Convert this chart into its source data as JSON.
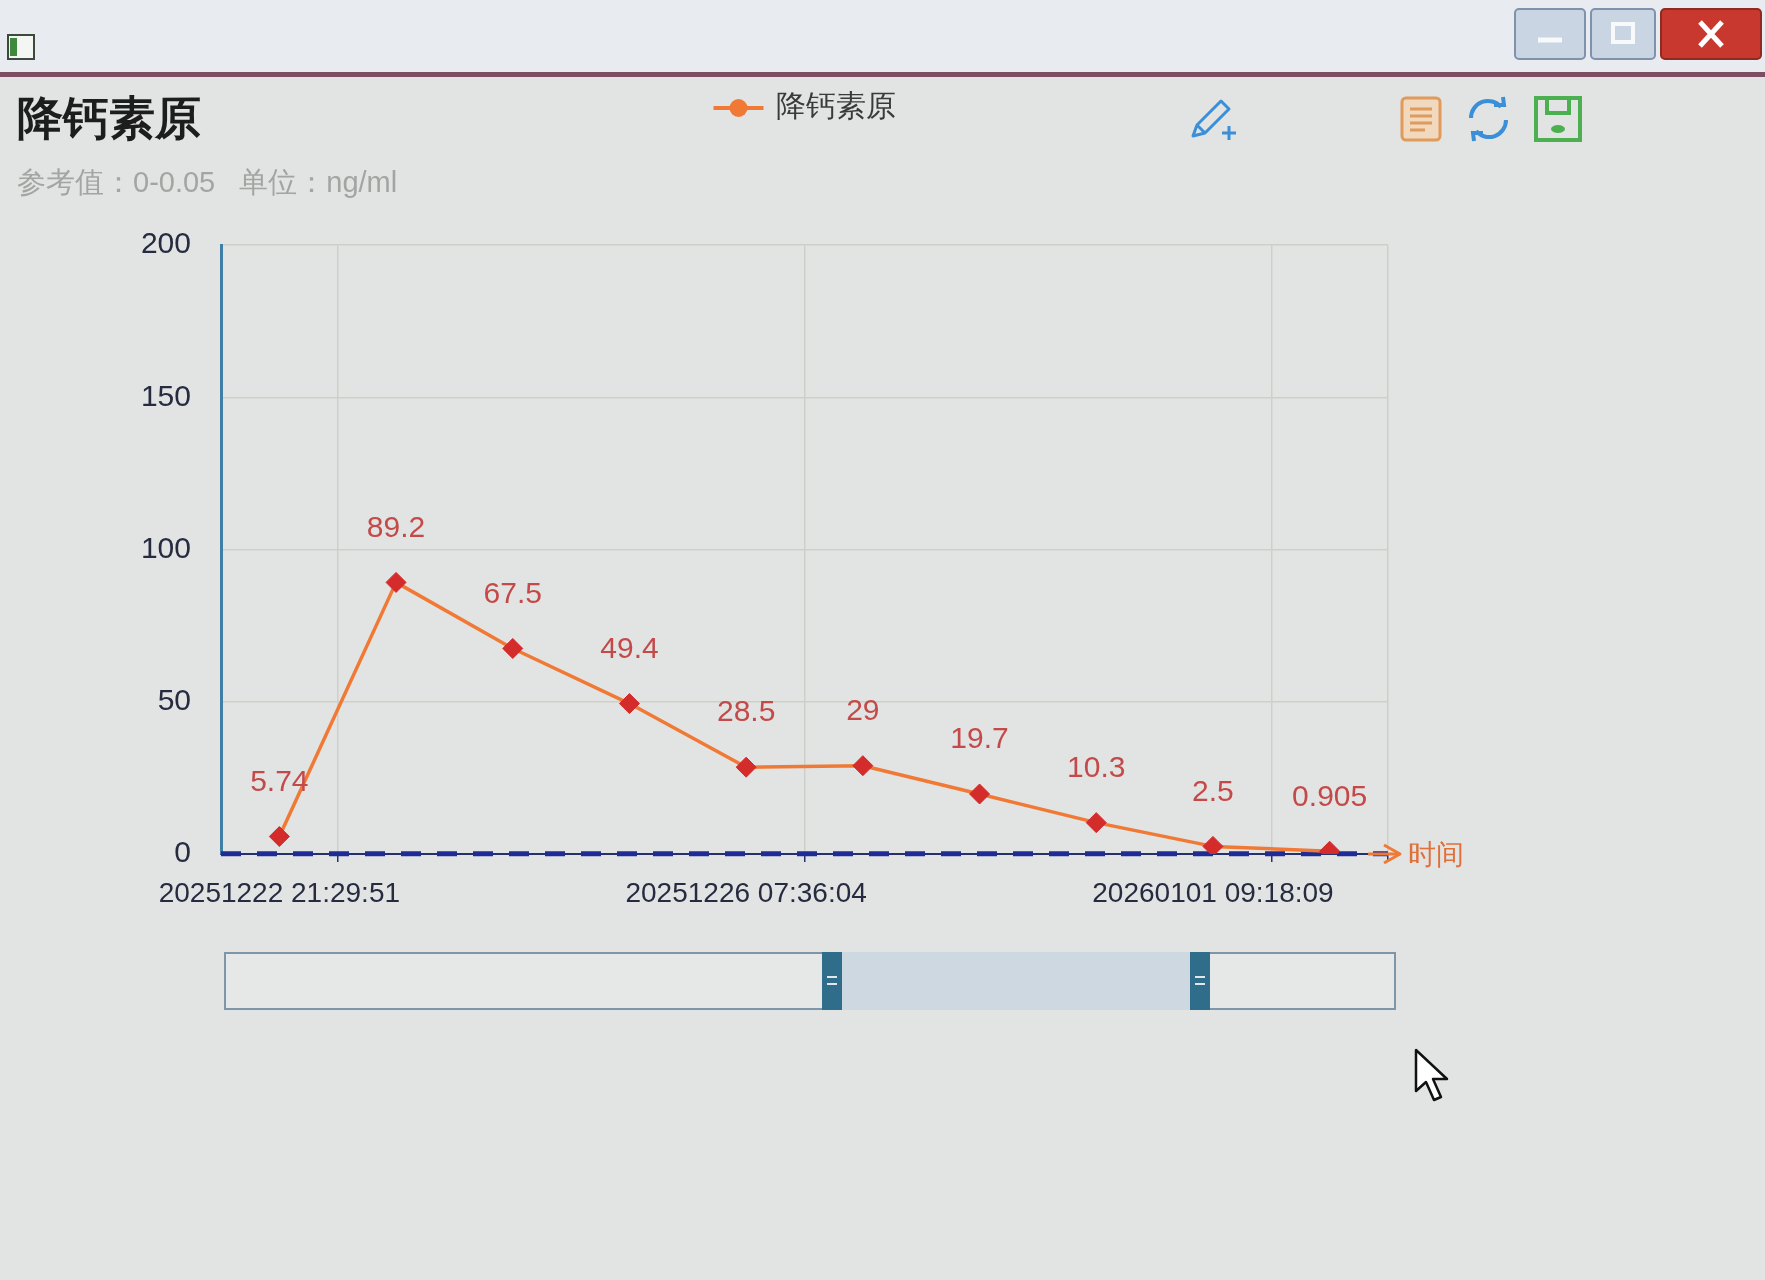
{
  "chart_data": {
    "type": "line",
    "title": "降钙素原",
    "subtitle": "参考值：0-0.05 单位：ng/ml",
    "xlabel": "时间",
    "categories": [
      "20251222 21:29:51",
      null,
      null,
      null,
      "20251226 07:36:04",
      null,
      null,
      null,
      "20260101 09:18:09",
      null
    ],
    "series": [
      {
        "name": "降钙素原",
        "color": "#f07a35",
        "colors": [
          "#d42b2b",
          "#d42b2b",
          "#d42b2b",
          "#d42b2b",
          "#d42b2b",
          "#d42b2b",
          "#d42b2b",
          "#d42b2b",
          "#d42b2b",
          "#d42b2b"
        ],
        "values": [
          5.74,
          89.2,
          67.5,
          49.4,
          28.5,
          29,
          19.7,
          10.3,
          2.5,
          0.905
        ]
      }
    ],
    "ylim": [
      0,
      200
    ],
    "yticks": [
      0,
      50,
      100,
      150,
      200
    ],
    "grid": true,
    "legend": "top",
    "marker": "diamond",
    "line_style": "solid",
    "data_labels": true,
    "ref_lines": [
      {
        "axis": "y",
        "value": 0.05,
        "color": "#1f2c96",
        "line_style": "dashed"
      }
    ]
  }
}
